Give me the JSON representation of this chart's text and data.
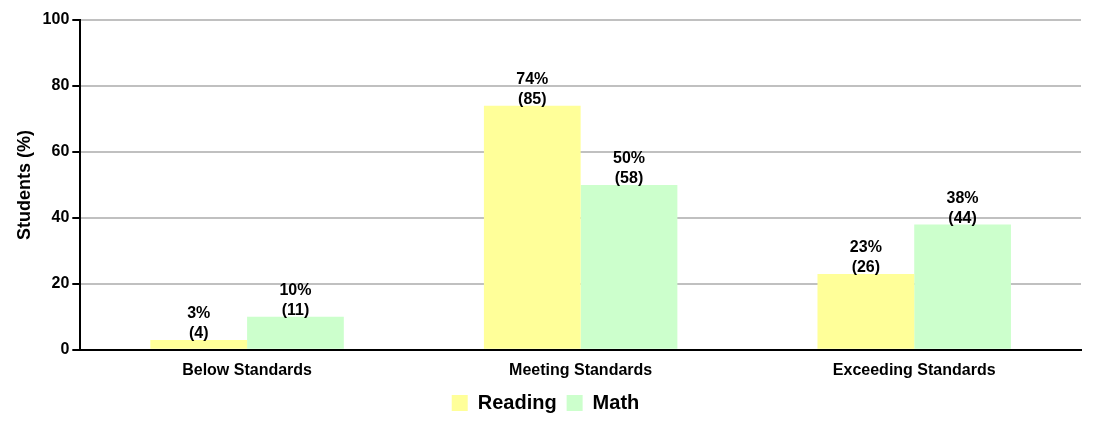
{
  "chart_data": {
    "type": "bar",
    "ylabel": "Students (%)",
    "categories": [
      "Below Standards",
      "Meeting Standards",
      "Exceeding Standards"
    ],
    "series": [
      {
        "name": "Reading",
        "color": "#ffff99",
        "values": [
          3,
          74,
          23
        ],
        "value_labels": [
          "3% (4)",
          "74% (85)",
          "23% (26)"
        ]
      },
      {
        "name": "Math",
        "color": "#ccffcc",
        "values": [
          10,
          50,
          38
        ],
        "value_labels": [
          "10% (11)",
          "50% (58)",
          "38% (44)"
        ]
      }
    ],
    "ylim": [
      0,
      100
    ],
    "yticks": [
      0,
      20,
      40,
      60,
      80,
      100
    ],
    "grid": "y",
    "legend": "bottom"
  }
}
